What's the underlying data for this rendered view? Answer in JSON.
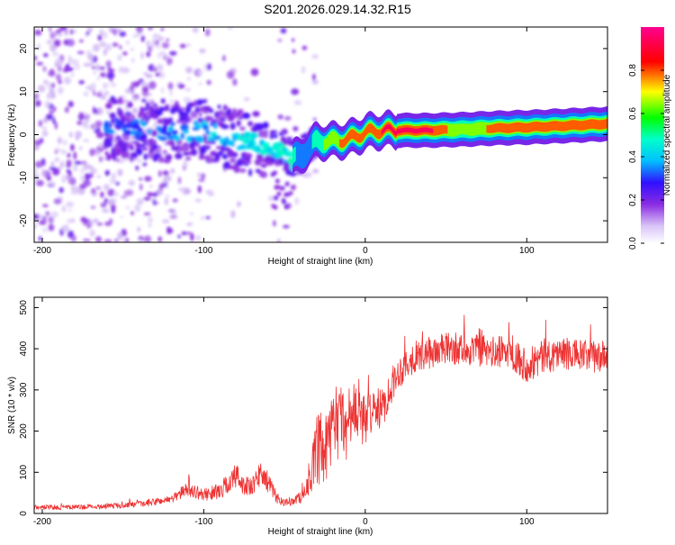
{
  "figure": {
    "title": "S201.2026.029.14.32.R15"
  },
  "chart_data": [
    {
      "type": "heatmap",
      "panel": "top",
      "xlabel": "Height of straight line (km)",
      "ylabel": "Frequency (Hz)",
      "xlim": [
        -205,
        150
      ],
      "ylim": [
        -25,
        25
      ],
      "xticks": [
        -200,
        -100,
        0,
        100
      ],
      "yticks": [
        -20,
        -10,
        0,
        10,
        20
      ],
      "colorbar": {
        "label": "Normalized spectral amplitude",
        "range": [
          0,
          1
        ],
        "ticks": [
          "0.0",
          "0.2",
          "0.4",
          "0.6",
          "0.8"
        ],
        "colors": [
          "#ffffff",
          "#b48cf0",
          "#7a00ff",
          "#2020ff",
          "#00c8ff",
          "#00ff40",
          "#ffff00",
          "#ff0000",
          "#ff00a0"
        ]
      },
      "ridge": {
        "description_points_x": [
          -150,
          -130,
          -110,
          -100,
          -90,
          -80,
          -70,
          -60,
          -50,
          -45,
          -40,
          -35,
          -30,
          -20,
          -10,
          0,
          10,
          20,
          40,
          60,
          80,
          100,
          120,
          150
        ],
        "description_points_freq": [
          1.5,
          1,
          0.5,
          1,
          0,
          -1,
          -2,
          -2.5,
          -4,
          -5.5,
          -5,
          -3,
          -1.5,
          -1.5,
          -1,
          0.5,
          1,
          1,
          1,
          1.2,
          1.5,
          1.7,
          2,
          2.5
        ],
        "peak_amplitude": [
          0.2,
          0.25,
          0.3,
          0.35,
          0.4,
          0.4,
          0.45,
          0.45,
          0.5,
          0.5,
          0.4,
          0.4,
          0.55,
          0.7,
          0.85,
          0.8,
          0.9,
          0.95,
          0.95,
          0.6,
          0.8,
          0.9,
          0.85,
          0.9
        ]
      }
    },
    {
      "type": "line",
      "panel": "bottom",
      "xlabel": "Height of straight line (km)",
      "ylabel": "SNR (10 * v/v)",
      "xlim": [
        -205,
        150
      ],
      "ylim": [
        0,
        525
      ],
      "xticks": [
        -200,
        -100,
        0,
        100
      ],
      "yticks": [
        0,
        100,
        200,
        300,
        400,
        500
      ],
      "series": [
        {
          "name": "SNR",
          "color": "#ee3333",
          "x": [
            -205,
            -180,
            -160,
            -140,
            -120,
            -110,
            -100,
            -90,
            -80,
            -75,
            -70,
            -65,
            -60,
            -55,
            -50,
            -45,
            -40,
            -35,
            -30,
            -25,
            -20,
            -15,
            -10,
            -5,
            0,
            5,
            10,
            15,
            20,
            25,
            30,
            40,
            50,
            60,
            70,
            80,
            90,
            100,
            110,
            120,
            130,
            140,
            150
          ],
          "values": [
            15,
            15,
            18,
            22,
            35,
            60,
            45,
            55,
            90,
            70,
            60,
            100,
            75,
            40,
            25,
            30,
            40,
            70,
            150,
            140,
            200,
            230,
            200,
            260,
            220,
            260,
            250,
            300,
            340,
            360,
            380,
            390,
            400,
            400,
            395,
            390,
            395,
            360,
            380,
            390,
            385,
            380,
            380
          ],
          "noise": [
            6,
            6,
            6,
            8,
            10,
            18,
            15,
            20,
            35,
            25,
            25,
            35,
            25,
            15,
            10,
            10,
            15,
            25,
            90,
            90,
            90,
            90,
            80,
            90,
            60,
            50,
            50,
            45,
            40,
            40,
            40,
            40,
            40,
            40,
            40,
            40,
            40,
            45,
            45,
            40,
            40,
            40,
            40
          ]
        }
      ]
    }
  ]
}
